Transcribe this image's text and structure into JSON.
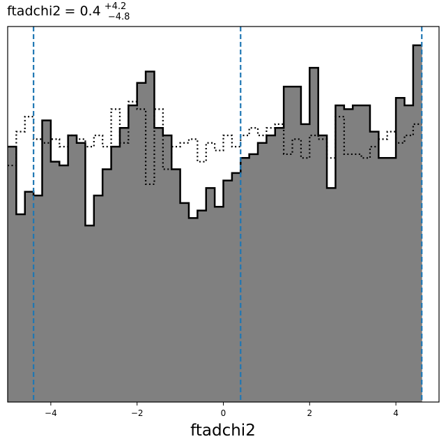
{
  "chart_data": {
    "type": "histogram",
    "title": {
      "param": "ftadchi2",
      "median": "0.4",
      "upper": "+4.2",
      "lower": "−4.8"
    },
    "xlabel": "ftadchi2",
    "xlim": [
      -5,
      5
    ],
    "ylim": [
      0,
      1.0
    ],
    "xticks": [
      -4,
      -2,
      0,
      2,
      4
    ],
    "xtick_labels": [
      "−4",
      "−2",
      "0",
      "2",
      "4"
    ],
    "bin_width": 0.2,
    "bin_start": -5,
    "series": [
      {
        "style": "filled-gray-solid-outline",
        "fill": "#808080",
        "edge": "#000000",
        "values": [
          0.68,
          0.5,
          0.56,
          0.55,
          0.75,
          0.64,
          0.63,
          0.71,
          0.69,
          0.47,
          0.55,
          0.62,
          0.68,
          0.73,
          0.79,
          0.85,
          0.88,
          0.73,
          0.71,
          0.62,
          0.53,
          0.49,
          0.51,
          0.57,
          0.52,
          0.59,
          0.61,
          0.65,
          0.66,
          0.69,
          0.71,
          0.73,
          0.84,
          0.84,
          0.74,
          0.89,
          0.71,
          0.57,
          0.79,
          0.78,
          0.79,
          0.79,
          0.72,
          0.65,
          0.65,
          0.81,
          0.79,
          0.95
        ]
      },
      {
        "style": "dotted-outline",
        "edge": "#000000",
        "values": [
          0.63,
          0.72,
          0.76,
          0.7,
          0.69,
          0.7,
          0.68,
          0.71,
          0.7,
          0.68,
          0.71,
          0.68,
          0.78,
          0.69,
          0.8,
          0.78,
          0.58,
          0.78,
          0.62,
          0.68,
          0.69,
          0.7,
          0.64,
          0.69,
          0.67,
          0.71,
          0.68,
          0.71,
          0.73,
          0.71,
          0.73,
          0.74,
          0.66,
          0.7,
          0.65,
          0.71,
          0.7,
          0.65,
          0.76,
          0.66,
          0.66,
          0.65,
          0.68,
          0.7,
          0.72,
          0.69,
          0.71,
          0.74
        ]
      }
    ],
    "vlines": [
      {
        "x": -4.4,
        "color": "#1f77b4",
        "style": "dashed"
      },
      {
        "x": 0.4,
        "color": "#1f77b4",
        "style": "dashed"
      },
      {
        "x": 4.6,
        "color": "#1f77b4",
        "style": "dashed"
      }
    ],
    "grid": false,
    "legend": "none"
  }
}
